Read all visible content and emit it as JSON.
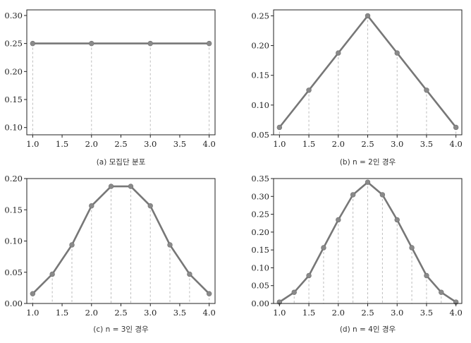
{
  "colors": {
    "line": "#777777",
    "marker": "#8a8a8a",
    "guide": "#b5b5b5",
    "frame": "#222222"
  },
  "chart_data": [
    {
      "type": "line",
      "caption": "(a) 모집단 분포",
      "x": [
        1.0,
        2.0,
        3.0,
        4.0
      ],
      "y": [
        0.25,
        0.25,
        0.25,
        0.25
      ],
      "xlim": [
        0.9,
        4.1
      ],
      "ylim": [
        0.087,
        0.31
      ],
      "xticks": [
        "1.0",
        "1.5",
        "2.0",
        "2.5",
        "3.0",
        "3.5",
        "4.0"
      ],
      "yticks": [
        "0.10",
        "0.15",
        "0.20",
        "0.25",
        "0.30"
      ],
      "grid": false
    },
    {
      "type": "line",
      "caption": "(b) n = 2인 경우",
      "x": [
        1.0,
        1.5,
        2.0,
        2.5,
        3.0,
        3.5,
        4.0
      ],
      "y": [
        0.0625,
        0.125,
        0.1875,
        0.25,
        0.1875,
        0.125,
        0.0625
      ],
      "xlim": [
        0.9,
        4.1
      ],
      "ylim": [
        0.05,
        0.26
      ],
      "xticks": [
        "1.0",
        "1.5",
        "2.0",
        "2.5",
        "3.0",
        "3.5",
        "4.0"
      ],
      "yticks": [
        "0.05",
        "0.10",
        "0.15",
        "0.20",
        "0.25"
      ],
      "grid": false
    },
    {
      "type": "line",
      "caption": "(c) n = 3인 경우",
      "x": [
        1.0,
        1.333,
        1.667,
        2.0,
        2.333,
        2.667,
        3.0,
        3.333,
        3.667,
        4.0
      ],
      "y": [
        0.0156,
        0.0469,
        0.0938,
        0.1563,
        0.1875,
        0.1875,
        0.1563,
        0.0938,
        0.0469,
        0.0156
      ],
      "xlim": [
        0.9,
        4.1
      ],
      "ylim": [
        0.0,
        0.2
      ],
      "xticks": [
        "1.0",
        "1.5",
        "2.0",
        "2.5",
        "3.0",
        "3.5",
        "4.0"
      ],
      "yticks": [
        "0.00",
        "0.05",
        "0.10",
        "0.15",
        "0.20"
      ],
      "grid": false
    },
    {
      "type": "line",
      "caption": "(d) n = 4인 경우",
      "x": [
        1.0,
        1.25,
        1.5,
        1.75,
        2.0,
        2.25,
        2.5,
        2.75,
        3.0,
        3.25,
        3.5,
        3.75,
        4.0
      ],
      "y": [
        0.0039,
        0.0313,
        0.0781,
        0.1563,
        0.2344,
        0.3047,
        0.3398,
        0.3047,
        0.2344,
        0.1563,
        0.0781,
        0.0313,
        0.0039
      ],
      "xlim": [
        0.9,
        4.1
      ],
      "ylim": [
        0.0,
        0.35
      ],
      "xticks": [
        "1.0",
        "1.5",
        "2.0",
        "2.5",
        "3.0",
        "3.5",
        "4.0"
      ],
      "yticks": [
        "0.00",
        "0.05",
        "0.10",
        "0.15",
        "0.20",
        "0.25",
        "0.30",
        "0.35"
      ],
      "grid": false
    }
  ]
}
